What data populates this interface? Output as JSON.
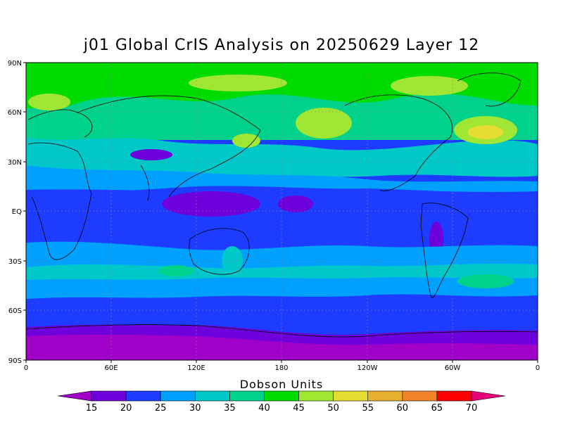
{
  "title": "j01 Global CrIS Analysis on 20250629 Layer 12",
  "axes": {
    "lat_ticks": [
      "90N",
      "60N",
      "30N",
      "EQ",
      "30S",
      "60S",
      "90S"
    ],
    "lon_ticks": [
      "0",
      "60E",
      "120E",
      "180",
      "120W",
      "60W",
      "0"
    ],
    "lat_range": [
      -90,
      90
    ],
    "lon_range": [
      0,
      360
    ]
  },
  "colorbar": {
    "title": "Dobson Units",
    "levels": [
      "15",
      "20",
      "25",
      "30",
      "35",
      "40",
      "45",
      "50",
      "55",
      "60",
      "65",
      "70"
    ],
    "colors": [
      "#a000c8",
      "#6e00dc",
      "#1e3cff",
      "#00a0ff",
      "#00c8c8",
      "#00d28c",
      "#00dc00",
      "#a0e632",
      "#e6dc32",
      "#e6af2d",
      "#f08228",
      "#fa0000",
      "#e6007a"
    ]
  },
  "map": {
    "background_value_band": "20-25",
    "grid": true,
    "coastlines": true
  }
}
